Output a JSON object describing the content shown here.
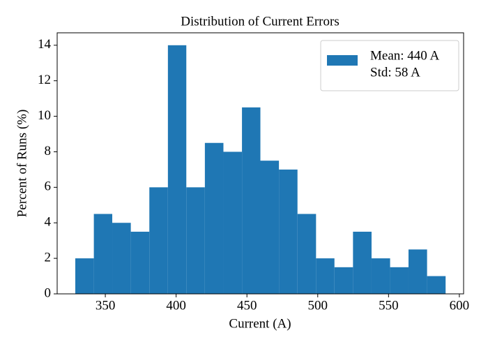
{
  "chart_data": {
    "type": "histogram",
    "title": "Distribution of Current Errors",
    "x_label": "Current (A)",
    "y_label": "Percent of Runs (%)",
    "bins": [
      328.8,
      341.9,
      354.9,
      368.0,
      381.1,
      394.2,
      407.2,
      420.3,
      433.4,
      446.5,
      459.5,
      472.6,
      485.7,
      498.8,
      511.8,
      524.9,
      538.0,
      551.1,
      564.1,
      577.2,
      590.3
    ],
    "counts": [
      2,
      4.5,
      4,
      3.5,
      6,
      14,
      6,
      8.5,
      8,
      10.5,
      7.5,
      7,
      4.5,
      2,
      1.5,
      3.5,
      2,
      1.5,
      2.5,
      1
    ],
    "color": "#1f77b4",
    "xlim": [
      316,
      603
    ],
    "xticks": [
      350,
      400,
      450,
      500,
      550,
      600
    ],
    "ylim": [
      0,
      14.7
    ],
    "yticks": [
      0,
      2,
      4,
      6,
      8,
      10,
      12,
      14
    ],
    "legend": {
      "labels": [
        "Mean: 440 A",
        "Std: 58 A"
      ],
      "loc": "upper right"
    }
  }
}
